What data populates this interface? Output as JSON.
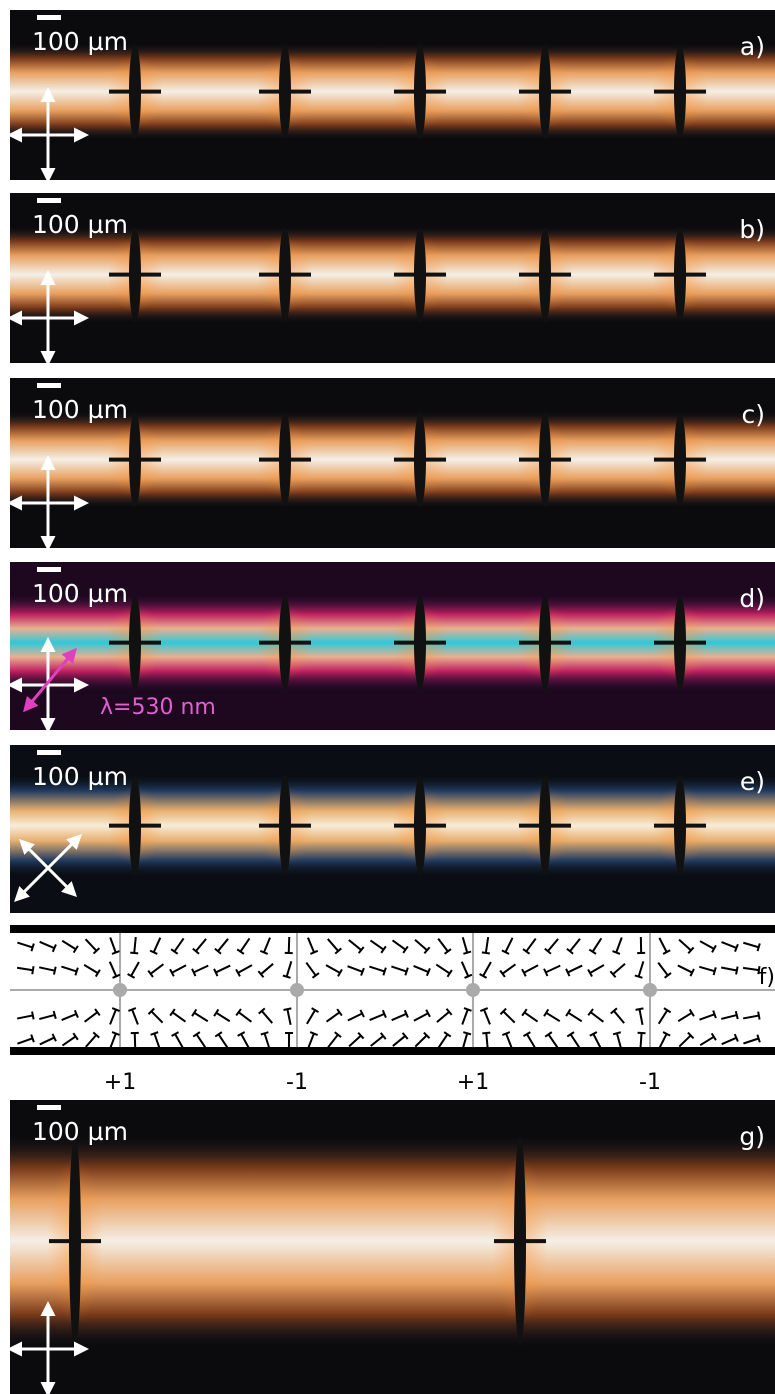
{
  "panels": [
    {
      "scale_bar": "100 µm",
      "label": "a)"
    },
    {
      "scale_bar": "100 µm",
      "label": "b)"
    },
    {
      "scale_bar": "100 µm",
      "label": "c)"
    },
    {
      "scale_bar": "100 µm",
      "label": "d)",
      "note": "λ=530 nm"
    },
    {
      "scale_bar": "100 µm",
      "label": "e)"
    },
    {
      "label": "f)",
      "charges": [
        "+1",
        "-1",
        "+1",
        "-1"
      ]
    },
    {
      "scale_bar": "100 µm",
      "label": "g)"
    }
  ]
}
